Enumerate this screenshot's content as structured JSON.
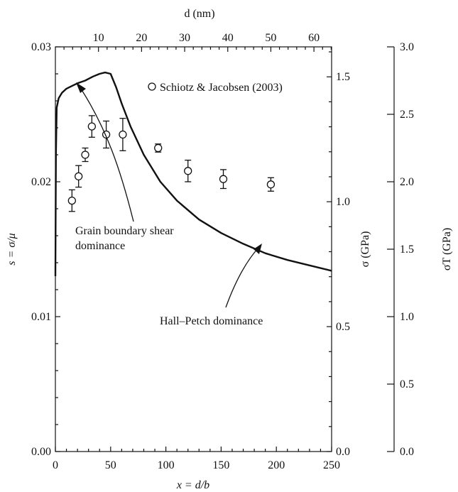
{
  "chart_data": {
    "type": "scatter",
    "x_axis": {
      "label": "x = d/b",
      "ticks": [
        "0",
        "50",
        "100",
        "150",
        "200",
        "250"
      ],
      "range": [
        0,
        250
      ]
    },
    "top_axis": {
      "label": "d (nm)",
      "ticks": [
        "10",
        "20",
        "30",
        "40",
        "50",
        "60"
      ],
      "range_nm": [
        0,
        64.1
      ]
    },
    "y_axis": {
      "label": "s = σ/μ",
      "ticks": [
        "0.00",
        "0.01",
        "0.02",
        "0.03"
      ],
      "range": [
        0,
        0.03
      ]
    },
    "right_axis_1": {
      "label": "σ (GPa)",
      "ticks": [
        "0.0",
        "0.5",
        "1.0",
        "1.5"
      ],
      "range_gpa": [
        0,
        1.62
      ]
    },
    "right_axis_2": {
      "label": "σT (GPa)",
      "ticks": [
        "0.0",
        "0.5",
        "1.0",
        "1.5",
        "2.0",
        "2.5",
        "3.0"
      ],
      "range_gpa": [
        0,
        3.0
      ]
    },
    "series": [
      {
        "name": "Schiotz & Jacobsen (2003)",
        "kind": "points_with_error_bars",
        "points": [
          {
            "x": 15,
            "y": 0.0186,
            "err": 0.0008
          },
          {
            "x": 21,
            "y": 0.0204,
            "err": 0.0008
          },
          {
            "x": 27,
            "y": 0.022,
            "err": 0.0005
          },
          {
            "x": 33,
            "y": 0.0241,
            "err": 0.0008
          },
          {
            "x": 46,
            "y": 0.0235,
            "err": 0.001
          },
          {
            "x": 61,
            "y": 0.0235,
            "err": 0.0012
          },
          {
            "x": 93,
            "y": 0.0225,
            "err": 0.0003
          },
          {
            "x": 120,
            "y": 0.0208,
            "err": 0.0008
          },
          {
            "x": 152,
            "y": 0.0202,
            "err": 0.0007
          },
          {
            "x": 195,
            "y": 0.0198,
            "err": 0.0005
          }
        ]
      },
      {
        "kind": "model_curve",
        "points": [
          {
            "x": 0.0,
            "y": 0.013
          },
          {
            "x": 0.5,
            "y": 0.022
          },
          {
            "x": 1.2,
            "y": 0.0255
          },
          {
            "x": 3,
            "y": 0.0262
          },
          {
            "x": 6,
            "y": 0.0266
          },
          {
            "x": 10,
            "y": 0.0269
          },
          {
            "x": 15,
            "y": 0.0271
          },
          {
            "x": 20,
            "y": 0.0273
          },
          {
            "x": 27,
            "y": 0.0275
          },
          {
            "x": 34,
            "y": 0.0278
          },
          {
            "x": 40,
            "y": 0.028
          },
          {
            "x": 45,
            "y": 0.0281
          },
          {
            "x": 50,
            "y": 0.028
          },
          {
            "x": 55,
            "y": 0.027
          },
          {
            "x": 60,
            "y": 0.0258
          },
          {
            "x": 68,
            "y": 0.0241
          },
          {
            "x": 80,
            "y": 0.022
          },
          {
            "x": 95,
            "y": 0.02
          },
          {
            "x": 110,
            "y": 0.0186
          },
          {
            "x": 130,
            "y": 0.0172
          },
          {
            "x": 150,
            "y": 0.0162
          },
          {
            "x": 170,
            "y": 0.0154
          },
          {
            "x": 190,
            "y": 0.0147
          },
          {
            "x": 210,
            "y": 0.0142
          },
          {
            "x": 230,
            "y": 0.0138
          },
          {
            "x": 250,
            "y": 0.0134
          }
        ]
      }
    ],
    "annotations": [
      {
        "text": "Grain boundary shear dominance",
        "lines": [
          "Grain boundary shear",
          "dominance"
        ]
      },
      {
        "text": "Hall–Petch dominance"
      }
    ],
    "grid": false,
    "legend": "top-right"
  }
}
